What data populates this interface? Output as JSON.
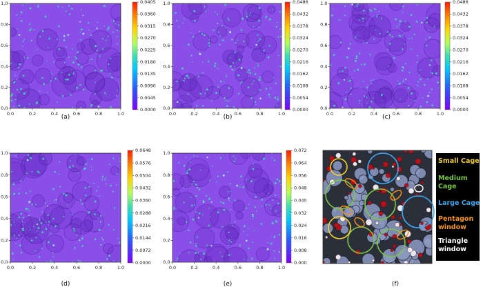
{
  "panel_captions": [
    "(a)",
    "(b)",
    "(c)",
    "(d)",
    "(e)",
    "(f)"
  ],
  "chart_data": [
    {
      "type": "heatmap",
      "caption": "(a)",
      "xlim": [
        0,
        1
      ],
      "ylim": [
        0,
        1
      ],
      "x_ticks": [
        "0.0",
        "0.2",
        "0.4",
        "0.6",
        "0.8",
        "1.0"
      ],
      "y_ticks": [
        "0.0",
        "0.2",
        "0.4",
        "0.6",
        "0.8",
        "1.0"
      ],
      "colorbar_range": [
        0,
        0.0405
      ],
      "colorbar_ticks": [
        "0.0405",
        "0.0360",
        "0.0315",
        "0.0270",
        "0.0225",
        "0.0180",
        "0.0135",
        "0.0090",
        "0.0045",
        "0.0000"
      ]
    },
    {
      "type": "heatmap",
      "caption": "(b)",
      "xlim": [
        0,
        1
      ],
      "ylim": [
        0,
        1
      ],
      "x_ticks": [
        "0.0",
        "0.2",
        "0.4",
        "0.6",
        "0.8",
        "1.0"
      ],
      "y_ticks": [
        "0.0",
        "0.2",
        "0.4",
        "0.6",
        "0.8",
        "1.0"
      ],
      "colorbar_range": [
        0,
        0.0486
      ],
      "colorbar_ticks": [
        "0.0486",
        "0.0432",
        "0.0378",
        "0.0324",
        "0.0270",
        "0.0216",
        "0.0162",
        "0.0108",
        "0.0054",
        "0.0000"
      ]
    },
    {
      "type": "heatmap",
      "caption": "(c)",
      "xlim": [
        0,
        1
      ],
      "ylim": [
        0,
        1
      ],
      "x_ticks": [
        "0.0",
        "0.2",
        "0.4",
        "0.6",
        "0.8",
        "1.0"
      ],
      "y_ticks": [
        "0.0",
        "0.2",
        "0.4",
        "0.6",
        "0.8",
        "1.0"
      ],
      "colorbar_range": [
        0,
        0.0486
      ],
      "colorbar_ticks": [
        "0.0486",
        "0.0432",
        "0.0378",
        "0.0324",
        "0.0270",
        "0.0216",
        "0.0162",
        "0.0108",
        "0.0054",
        "0.0000"
      ]
    },
    {
      "type": "heatmap",
      "caption": "(d)",
      "xlim": [
        0,
        1
      ],
      "ylim": [
        0,
        1
      ],
      "x_ticks": [
        "0.0",
        "0.2",
        "0.4",
        "0.6",
        "0.8",
        "1.0"
      ],
      "y_ticks": [
        "0.0",
        "0.2",
        "0.4",
        "0.6",
        "0.8",
        "1.0"
      ],
      "colorbar_range": [
        0,
        0.0648
      ],
      "colorbar_ticks": [
        "0.0648",
        "0.0576",
        "0.0504",
        "0.0432",
        "0.0360",
        "0.0288",
        "0.0216",
        "0.0144",
        "0.0072",
        "0.0000"
      ]
    },
    {
      "type": "heatmap",
      "caption": "(e)",
      "xlim": [
        0,
        1
      ],
      "ylim": [
        0,
        1
      ],
      "x_ticks": [
        "0.0",
        "0.2",
        "0.4",
        "0.6",
        "0.8",
        "1.0"
      ],
      "y_ticks": [
        "0.0",
        "0.2",
        "0.4",
        "0.6",
        "0.8",
        "1.0"
      ],
      "colorbar_range": [
        0,
        0.072
      ],
      "colorbar_ticks": [
        "0.072",
        "0.064",
        "0.056",
        "0.048",
        "0.040",
        "0.032",
        "0.024",
        "0.016",
        "0.008",
        "0.000"
      ]
    }
  ],
  "legend": [
    {
      "label": "Small Cage",
      "color": "#f2d22e"
    },
    {
      "label": "Medium Cage",
      "color": "#7ac943"
    },
    {
      "label": "Large Cage",
      "color": "#3fa9f5"
    },
    {
      "label": "Pentagon window",
      "color": "#f7931e"
    },
    {
      "label": "Triangle window",
      "color": "#ffffff"
    }
  ],
  "colors": {
    "heatmap_background": "#8a4fe8",
    "hotspot": "#3fe0b0",
    "legend_background": "#000000"
  }
}
